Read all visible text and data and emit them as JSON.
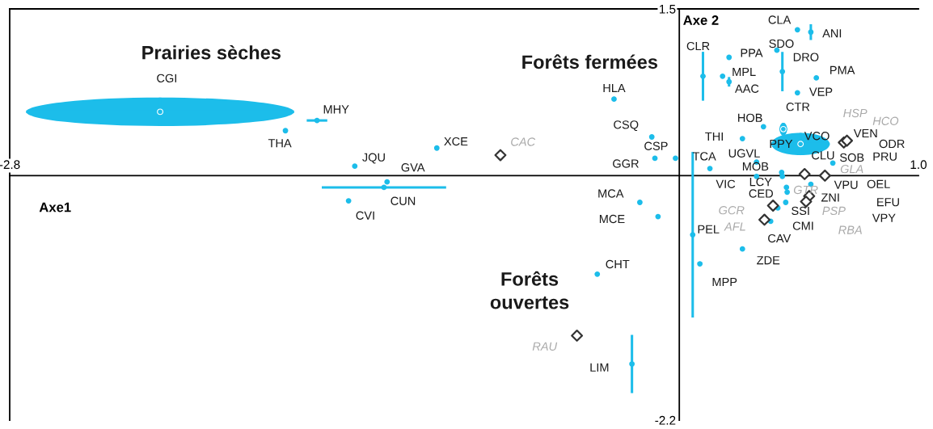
{
  "chart_data": {
    "type": "scatter",
    "xlabel": "Axe1",
    "ylabel": "Axe 2",
    "xlim": [
      -2.8,
      1.0
    ],
    "ylim": [
      -2.2,
      1.5
    ],
    "xticks": [
      -2.8,
      {
        "value": 1.0,
        "label": "1.0"
      }
    ],
    "yticks": [
      1.5,
      -2.2
    ],
    "grid": false,
    "legend": false,
    "series": [
      {
        "marker": "circle",
        "color": "#1cbdea",
        "x": [
          -2.171,
          -1.515,
          -1.647,
          -1.014,
          -1.357,
          -1.222,
          -1.235,
          -1.383,
          -0.273,
          -0.115,
          -0.102,
          -0.016,
          -0.165,
          -0.089,
          -0.343,
          -0.198,
          0.494,
          0.55,
          0.099,
          0.208,
          0.181,
          0.208,
          0.408,
          0.431,
          0.573,
          0.494,
          0.435,
          0.352,
          0.264,
          0.507,
          0.642,
          0.128,
          0.323,
          0.323,
          0.428,
          0.431,
          0.448,
          0.451,
          0.445,
          0.55,
          0.412,
          0.382,
          0.264,
          0.086,
          0.056
        ],
        "values": [
          0.574,
          0.496,
          0.404,
          0.248,
          0.085,
          -0.057,
          -0.106,
          -0.227,
          0.688,
          0.348,
          0.156,
          0.156,
          -0.241,
          -0.369,
          -0.887,
          -1.695,
          1.312,
          1.291,
          0.894,
          1.064,
          0.894,
          0.844,
          1.128,
          0.936,
          0.879,
          0.745,
          0.418,
          0.44,
          0.333,
          0.284,
          0.113,
          0.064,
          0.121,
          -0.007,
          0.028,
          -0.007,
          -0.106,
          -0.149,
          -0.241,
          -0.078,
          -0.291,
          -0.411,
          -0.66,
          -0.794,
          -0.532
        ],
        "xerrors": [
          0.56,
          0.043,
          null,
          null,
          null,
          null,
          0.26,
          null,
          null,
          null,
          null,
          null,
          null,
          null,
          null,
          null,
          null,
          null,
          null,
          null,
          null,
          null,
          null,
          null,
          null,
          null,
          0.016,
          null,
          null,
          0.122,
          null,
          null,
          null,
          null,
          null,
          null,
          null,
          null,
          null,
          null,
          null,
          null,
          null,
          null,
          null
        ],
        "errors": [
          0.128,
          null,
          null,
          null,
          null,
          null,
          null,
          null,
          null,
          null,
          null,
          null,
          null,
          null,
          null,
          0.262,
          null,
          0.071,
          0.22,
          null,
          null,
          0.043,
          null,
          0.177,
          null,
          null,
          0.057,
          null,
          null,
          0.1,
          null,
          null,
          null,
          null,
          null,
          null,
          null,
          null,
          null,
          null,
          null,
          null,
          null,
          null,
          0.745
        ]
      },
      {
        "marker": "diamond",
        "color": "#333333",
        "x": [
          -0.748,
          -0.428,
          0.688,
          0.701,
          0.524,
          0.609,
          0.392,
          0.356,
          0.543,
          0.53
        ],
        "values": [
          0.184,
          -1.44,
          0.298,
          0.314,
          0.014,
          0.0,
          -0.27,
          -0.397,
          -0.184,
          -0.234
        ]
      }
    ],
    "annotations": [
      "Prairies sèches",
      "Forêts fermées",
      "Forêts\nouvertes",
      {
        "text": "CGI",
        "x": -2.171,
        "y": 0.574
      },
      {
        "text": "MHY",
        "x": -1.515,
        "y": 0.496
      },
      {
        "text": "THA",
        "x": -1.647,
        "y": 0.404
      },
      {
        "text": "XCE",
        "x": -1.014,
        "y": 0.248
      },
      {
        "text": "JQU",
        "x": -1.357,
        "y": 0.085
      },
      {
        "text": "GVA",
        "x": -1.222,
        "y": -0.057
      },
      {
        "text": "CUN",
        "x": -1.235,
        "y": -0.106
      },
      {
        "text": "CVI",
        "x": -1.383,
        "y": -0.227
      },
      {
        "text": "CAC",
        "x": -0.748,
        "y": 0.184
      },
      {
        "text": "HLA",
        "x": -0.273,
        "y": 0.688
      },
      {
        "text": "CSQ",
        "x": -0.115,
        "y": 0.348
      },
      {
        "text": "CSP",
        "x": -0.102,
        "y": 0.156
      },
      "GGR",
      {
        "text": "MCA",
        "x": -0.165,
        "y": -0.241
      },
      {
        "text": "MCE",
        "x": -0.089,
        "y": -0.369
      },
      {
        "text": "CHT",
        "x": -0.343,
        "y": -0.887
      },
      "RAU",
      {
        "text": "LIM",
        "x": -0.198,
        "y": -1.695
      },
      {
        "text": "CLA",
        "x": 0.494,
        "y": 1.312
      },
      {
        "text": "ANI",
        "x": 0.55,
        "y": 1.291
      },
      "CLR",
      {
        "text": "PPA",
        "x": 0.208,
        "y": 1.064
      },
      {
        "text": "MPL",
        "x": 0.181,
        "y": 0.894
      },
      {
        "text": "AAC",
        "x": 0.208,
        "y": 0.844
      },
      {
        "text": "SDO",
        "x": 0.408,
        "y": 1.128
      },
      {
        "text": "DRO",
        "x": 0.431,
        "y": 0.936
      },
      {
        "text": "PMA",
        "x": 0.573,
        "y": 0.879
      },
      {
        "text": "VEP",
        "x": 0.494,
        "y": 0.745
      },
      {
        "text": "CTR",
        "x": 0.435,
        "y": 0.418
      },
      {
        "text": "HOB",
        "x": 0.352,
        "y": 0.44
      },
      {
        "text": "THI",
        "x": 0.264,
        "y": 0.333
      },
      "PPY",
      {
        "text": "CLU",
        "x": 0.507,
        "y": 0.284
      },
      "VCO",
      "HSP",
      "HCO",
      "VEN",
      "ODR",
      "PRU",
      {
        "text": "SOB",
        "x": 0.642,
        "y": 0.113
      },
      {
        "text": "TCA",
        "x": 0.128,
        "y": 0.064
      },
      {
        "text": "UGVL",
        "x": 0.323,
        "y": 0.121
      },
      {
        "text": "MOB",
        "x": 0.323,
        "y": -0.007
      },
      {
        "text": "GLA",
        "x": 0.609,
        "y": 0.0
      },
      "VIC",
      {
        "text": "LCY",
        "x": 0.448,
        "y": -0.106
      },
      {
        "text": "GTR",
        "x": 0.524,
        "y": 0.014
      },
      "VPU",
      "OEL",
      {
        "text": "CED",
        "x": 0.445,
        "y": -0.241
      },
      "ZNI",
      "EFU",
      {
        "text": "GCR",
        "x": 0.392,
        "y": -0.27
      },
      "SSI",
      {
        "text": "PSP",
        "x": 0.543,
        "y": -0.184
      },
      "VPY",
      {
        "text": "AFL",
        "x": 0.356,
        "y": -0.397
      },
      {
        "text": "CMI",
        "x": 0.382,
        "y": -0.411
      },
      "RBA",
      {
        "text": "PEL",
        "x": 0.056,
        "y": -0.532
      },
      "CAV",
      {
        "text": "ZDE",
        "x": 0.264,
        "y": -0.66
      },
      {
        "text": "MPP",
        "x": 0.086,
        "y": -0.794
      }
    ]
  }
}
